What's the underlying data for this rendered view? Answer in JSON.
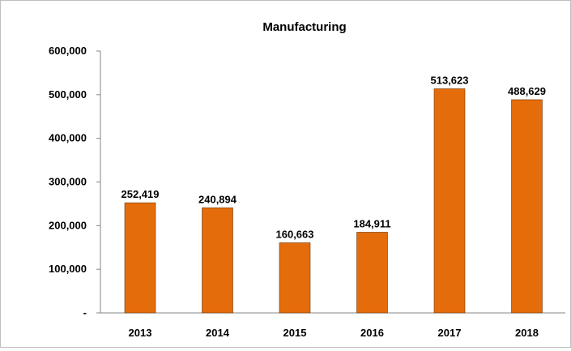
{
  "chart_data": {
    "type": "bar",
    "title": "Manufacturing",
    "categories": [
      "2013",
      "2014",
      "2015",
      "2016",
      "2017",
      "2018"
    ],
    "values": [
      252419,
      240894,
      160663,
      184911,
      513623,
      488629
    ],
    "data_labels": [
      "252,419",
      "240,894",
      "160,663",
      "184,911",
      "513,623",
      "488,629"
    ],
    "ylim": [
      0,
      600000
    ],
    "yticks": [
      0,
      100000,
      200000,
      300000,
      400000,
      500000,
      600000
    ],
    "ytick_labels": [
      "-",
      "100,000",
      "200,000",
      "300,000",
      "400,000",
      "500,000",
      "600,000"
    ],
    "xlabel": "",
    "ylabel": "",
    "grid": false,
    "legend": "none",
    "bar_color": "#E46C0A"
  }
}
